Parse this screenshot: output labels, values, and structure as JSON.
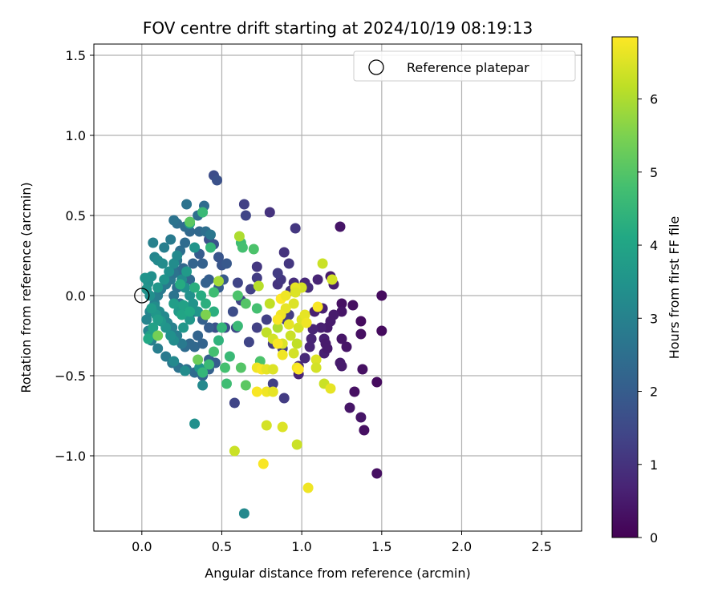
{
  "chart_data": {
    "type": "scatter",
    "title": "FOV centre drift starting at 2024/10/19 08:19:13",
    "xlabel": "Angular distance from reference (arcmin)",
    "ylabel": "Rotation from reference (arcmin)",
    "xlim": [
      -0.3,
      2.75
    ],
    "ylim": [
      -1.47,
      1.57
    ],
    "xticks": [
      0.0,
      0.5,
      1.0,
      1.5,
      2.0,
      2.5
    ],
    "xtick_labels": [
      "0.0",
      "0.5",
      "1.0",
      "1.5",
      "2.0",
      "2.5"
    ],
    "yticks": [
      -1.0,
      -0.5,
      0.0,
      0.5,
      1.0,
      1.5
    ],
    "ytick_labels": [
      "−1.0",
      "−0.5",
      "0.0",
      "0.5",
      "1.0",
      "1.5"
    ],
    "grid": true,
    "legend": {
      "placement": "top-right",
      "entries": [
        {
          "label": "Reference platepar",
          "marker": "open-circle"
        }
      ]
    },
    "reference_point": {
      "x": 0.0,
      "y": 0.0
    },
    "colorbar": {
      "label": "Hours from first FF file",
      "range": [
        0,
        6.85
      ],
      "ticks": [
        0,
        1,
        2,
        3,
        4,
        5,
        6
      ],
      "tick_labels": [
        "0",
        "1",
        "2",
        "3",
        "4",
        "5",
        "6"
      ],
      "colormap": "viridis"
    },
    "points": [
      [
        1.5,
        0.0,
        0.2
      ],
      [
        1.5,
        -0.22,
        0.2
      ],
      [
        1.47,
        -0.54,
        0.2
      ],
      [
        1.47,
        -1.11,
        0.3
      ],
      [
        1.39,
        -0.84,
        0.3
      ],
      [
        1.37,
        -0.76,
        0.4
      ],
      [
        1.33,
        -0.6,
        0.3
      ],
      [
        1.3,
        -0.7,
        0.4
      ],
      [
        1.37,
        -0.24,
        0.3
      ],
      [
        1.38,
        -0.46,
        0.3
      ],
      [
        1.37,
        -0.16,
        0.2
      ],
      [
        1.32,
        -0.06,
        0.3
      ],
      [
        1.25,
        -0.05,
        0.3
      ],
      [
        1.25,
        -0.1,
        0.4
      ],
      [
        1.24,
        0.43,
        0.4
      ],
      [
        1.18,
        0.12,
        0.5
      ],
      [
        1.2,
        0.07,
        0.6
      ],
      [
        1.25,
        -0.27,
        0.4
      ],
      [
        1.28,
        -0.32,
        0.4
      ],
      [
        1.24,
        -0.42,
        0.5
      ],
      [
        1.25,
        -0.44,
        0.5
      ],
      [
        1.16,
        -0.2,
        0.5
      ],
      [
        1.14,
        -0.27,
        0.6
      ],
      [
        1.2,
        -0.12,
        0.5
      ],
      [
        1.13,
        -0.08,
        0.6
      ],
      [
        1.1,
        0.1,
        0.7
      ],
      [
        1.08,
        -0.1,
        0.6
      ],
      [
        1.12,
        -0.2,
        0.6
      ],
      [
        1.15,
        -0.3,
        0.5
      ],
      [
        1.14,
        -0.36,
        0.6
      ],
      [
        1.16,
        -0.33,
        0.5
      ],
      [
        1.18,
        -0.16,
        0.5
      ],
      [
        1.07,
        -0.21,
        0.7
      ],
      [
        1.06,
        -0.27,
        0.7
      ],
      [
        1.05,
        -0.32,
        0.7
      ],
      [
        1.02,
        -0.39,
        0.8
      ],
      [
        0.98,
        -0.49,
        0.7
      ],
      [
        0.98,
        -0.44,
        0.8
      ],
      [
        1.02,
        0.08,
        0.8
      ],
      [
        1.04,
        0.05,
        0.9
      ],
      [
        0.95,
        0.08,
        0.9
      ],
      [
        0.93,
        0.03,
        1.0
      ],
      [
        0.92,
        0.2,
        1.1
      ],
      [
        0.89,
        0.27,
        1.0
      ],
      [
        0.85,
        0.07,
        1.0
      ],
      [
        0.87,
        0.1,
        1.1
      ],
      [
        0.85,
        0.14,
        1.2
      ],
      [
        0.96,
        0.42,
        1.1
      ],
      [
        0.8,
        0.52,
        1.0
      ],
      [
        0.72,
        0.18,
        1.1
      ],
      [
        0.72,
        0.11,
        1.2
      ],
      [
        0.68,
        0.04,
        1.3
      ],
      [
        0.64,
        0.57,
        1.3
      ],
      [
        0.65,
        0.5,
        1.4
      ],
      [
        0.6,
        0.08,
        1.4
      ],
      [
        0.58,
        -0.67,
        1.4
      ],
      [
        0.89,
        -0.64,
        1.2
      ],
      [
        0.82,
        -0.55,
        1.3
      ],
      [
        0.88,
        -0.33,
        1.2
      ],
      [
        0.82,
        -0.3,
        1.2
      ],
      [
        0.9,
        -0.15,
        1.2
      ],
      [
        0.92,
        -0.12,
        1.2
      ],
      [
        0.78,
        -0.15,
        1.3
      ],
      [
        0.72,
        -0.2,
        1.3
      ],
      [
        0.67,
        -0.29,
        1.4
      ],
      [
        0.62,
        -0.03,
        1.4
      ],
      [
        0.57,
        -0.1,
        1.6
      ],
      [
        0.59,
        -0.2,
        1.5
      ],
      [
        0.52,
        -0.2,
        1.6
      ],
      [
        0.46,
        -0.2,
        1.7
      ],
      [
        0.45,
        0.75,
        1.6
      ],
      [
        0.47,
        0.72,
        1.7
      ],
      [
        0.42,
        0.35,
        1.7
      ],
      [
        0.45,
        0.32,
        1.8
      ],
      [
        0.48,
        0.24,
        1.8
      ],
      [
        0.5,
        0.19,
        1.8
      ],
      [
        0.53,
        0.2,
        1.9
      ],
      [
        0.51,
        0.1,
        1.9
      ],
      [
        0.48,
        0.05,
        2.0
      ],
      [
        0.42,
        0.1,
        2.0
      ],
      [
        0.4,
        0.08,
        2.1
      ],
      [
        0.38,
        0.2,
        2.1
      ],
      [
        0.36,
        0.26,
        2.0
      ],
      [
        0.32,
        0.2,
        2.2
      ],
      [
        0.3,
        0.1,
        2.3
      ],
      [
        0.26,
        0.17,
        2.3
      ],
      [
        0.23,
        0.15,
        2.4
      ],
      [
        0.22,
        0.05,
        2.5
      ],
      [
        0.2,
        0.0,
        2.6
      ],
      [
        0.24,
        -0.05,
        2.5
      ],
      [
        0.28,
        -0.08,
        2.4
      ],
      [
        0.33,
        -0.1,
        2.2
      ],
      [
        0.38,
        -0.15,
        2.1
      ],
      [
        0.42,
        -0.2,
        2.0
      ],
      [
        0.35,
        -0.25,
        2.2
      ],
      [
        0.3,
        -0.3,
        2.3
      ],
      [
        0.27,
        -0.32,
        2.4
      ],
      [
        0.33,
        -0.32,
        2.3
      ],
      [
        0.38,
        -0.3,
        2.2
      ],
      [
        0.42,
        -0.4,
        2.1
      ],
      [
        0.46,
        -0.42,
        2.0
      ],
      [
        0.42,
        -0.46,
        2.1
      ],
      [
        0.38,
        -0.5,
        2.2
      ],
      [
        0.33,
        -0.48,
        2.4
      ],
      [
        0.28,
        -0.46,
        2.5
      ],
      [
        0.23,
        -0.45,
        2.6
      ],
      [
        0.19,
        -0.42,
        2.7
      ],
      [
        0.15,
        -0.38,
        2.8
      ],
      [
        0.1,
        -0.33,
        2.9
      ],
      [
        0.06,
        -0.28,
        3.0
      ],
      [
        0.04,
        -0.22,
        3.1
      ],
      [
        0.03,
        -0.15,
        3.1
      ],
      [
        0.05,
        -0.1,
        3.1
      ],
      [
        0.08,
        -0.05,
        3.0
      ],
      [
        0.1,
        0.0,
        2.9
      ],
      [
        0.12,
        0.04,
        2.8
      ],
      [
        0.15,
        0.07,
        2.8
      ],
      [
        0.18,
        0.1,
        2.7
      ],
      [
        0.2,
        0.14,
        2.6
      ],
      [
        0.22,
        0.22,
        2.6
      ],
      [
        0.24,
        0.28,
        2.5
      ],
      [
        0.27,
        0.33,
        2.4
      ],
      [
        0.3,
        0.4,
        2.3
      ],
      [
        0.27,
        0.43,
        2.4
      ],
      [
        0.22,
        0.45,
        2.5
      ],
      [
        0.2,
        0.47,
        2.6
      ],
      [
        0.28,
        0.57,
        2.6
      ],
      [
        0.35,
        0.5,
        2.5
      ],
      [
        0.39,
        0.56,
        2.4
      ],
      [
        0.36,
        0.4,
        2.3
      ],
      [
        0.4,
        0.4,
        2.5
      ],
      [
        0.43,
        0.38,
        2.7
      ],
      [
        0.18,
        0.35,
        2.8
      ],
      [
        0.14,
        0.3,
        2.9
      ],
      [
        0.07,
        0.33,
        3.0
      ],
      [
        0.08,
        0.24,
        3.1
      ],
      [
        0.1,
        0.22,
        3.2
      ],
      [
        0.13,
        0.2,
        3.3
      ],
      [
        0.06,
        0.12,
        3.4
      ],
      [
        0.04,
        0.08,
        3.4
      ],
      [
        0.02,
        0.11,
        3.5
      ],
      [
        0.03,
        0.04,
        3.5
      ],
      [
        0.05,
        0.0,
        3.4
      ],
      [
        0.08,
        -0.07,
        3.3
      ],
      [
        0.11,
        -0.1,
        3.3
      ],
      [
        0.14,
        -0.13,
        3.2
      ],
      [
        0.16,
        -0.17,
        3.1
      ],
      [
        0.19,
        -0.2,
        3.0
      ],
      [
        0.22,
        -0.25,
        2.9
      ],
      [
        0.25,
        -0.3,
        2.8
      ],
      [
        0.2,
        -0.28,
        3.3
      ],
      [
        0.18,
        -0.25,
        3.4
      ],
      [
        0.15,
        -0.2,
        3.5
      ],
      [
        0.12,
        -0.16,
        3.6
      ],
      [
        0.09,
        -0.12,
        3.6
      ],
      [
        0.06,
        -0.08,
        3.7
      ],
      [
        0.1,
        0.05,
        3.6
      ],
      [
        0.14,
        0.1,
        3.5
      ],
      [
        0.17,
        0.15,
        3.4
      ],
      [
        0.2,
        0.2,
        3.3
      ],
      [
        0.22,
        0.25,
        3.2
      ],
      [
        0.25,
        0.1,
        3.3
      ],
      [
        0.27,
        0.05,
        3.4
      ],
      [
        0.3,
        0.0,
        3.4
      ],
      [
        0.32,
        -0.05,
        3.5
      ],
      [
        0.35,
        -0.1,
        3.5
      ],
      [
        0.3,
        -0.15,
        3.6
      ],
      [
        0.26,
        -0.2,
        3.6
      ],
      [
        0.23,
        -0.1,
        3.7
      ],
      [
        0.28,
        0.15,
        3.7
      ],
      [
        0.33,
        0.3,
        3.5
      ],
      [
        0.3,
        0.45,
        3.9
      ],
      [
        0.33,
        -0.8,
        3.4
      ],
      [
        0.38,
        -0.56,
        3.2
      ],
      [
        0.64,
        -1.36,
        3.2
      ],
      [
        0.27,
        -0.47,
        3.3
      ],
      [
        0.36,
        -0.45,
        3.5
      ],
      [
        0.2,
        -0.41,
        3.2
      ],
      [
        0.05,
        -0.25,
        3.8
      ],
      [
        0.04,
        -0.27,
        4.1
      ],
      [
        0.07,
        -0.2,
        3.9
      ],
      [
        0.1,
        -0.15,
        3.8
      ],
      [
        0.2,
        -0.05,
        3.8
      ],
      [
        0.26,
        -0.06,
        3.9
      ],
      [
        0.25,
        -0.12,
        4.0
      ],
      [
        0.3,
        -0.1,
        4.1
      ],
      [
        0.24,
        0.07,
        4.2
      ],
      [
        0.33,
        0.05,
        4.3
      ],
      [
        0.37,
        0.0,
        4.2
      ],
      [
        0.4,
        -0.05,
        4.3
      ],
      [
        0.45,
        -0.1,
        4.3
      ],
      [
        0.48,
        -0.28,
        4.4
      ],
      [
        0.5,
        -0.2,
        4.5
      ],
      [
        0.42,
        -0.43,
        4.6
      ],
      [
        0.45,
        -0.35,
        4.8
      ],
      [
        0.38,
        -0.48,
        4.5
      ],
      [
        0.38,
        0.52,
        4.6
      ],
      [
        0.43,
        0.3,
        4.5
      ],
      [
        0.45,
        0.02,
        4.7
      ],
      [
        0.55,
        -0.38,
        4.6
      ],
      [
        0.52,
        -0.45,
        4.8
      ],
      [
        0.53,
        -0.55,
        4.7
      ],
      [
        0.6,
        -0.19,
        4.6
      ],
      [
        0.62,
        0.33,
        4.7
      ],
      [
        0.63,
        0.3,
        4.8
      ],
      [
        0.7,
        0.29,
        4.9
      ],
      [
        0.6,
        0.0,
        4.9
      ],
      [
        0.65,
        -0.05,
        5.0
      ],
      [
        0.72,
        -0.08,
        4.8
      ],
      [
        0.74,
        -0.41,
        4.9
      ],
      [
        0.62,
        -0.45,
        5.0
      ],
      [
        0.65,
        -0.56,
        5.1
      ],
      [
        0.3,
        0.46,
        5.1
      ],
      [
        0.35,
        -0.4,
        5.3
      ],
      [
        0.1,
        -0.25,
        5.4
      ],
      [
        0.4,
        -0.12,
        5.5
      ],
      [
        0.48,
        0.09,
        5.9
      ],
      [
        0.61,
        0.37,
        6.0
      ],
      [
        0.73,
        0.06,
        6.1
      ],
      [
        0.8,
        -0.05,
        6.2
      ],
      [
        0.85,
        -0.2,
        6.0
      ],
      [
        0.78,
        -0.23,
        6.2
      ],
      [
        0.82,
        -0.27,
        6.4
      ],
      [
        0.88,
        -0.3,
        6.5
      ],
      [
        0.93,
        -0.25,
        6.3
      ],
      [
        0.97,
        -0.3,
        6.2
      ],
      [
        0.98,
        -0.2,
        6.4
      ],
      [
        1.0,
        -0.15,
        6.5
      ],
      [
        1.02,
        -0.12,
        6.6
      ],
      [
        1.03,
        -0.17,
        6.7
      ],
      [
        0.95,
        -0.05,
        6.5
      ],
      [
        0.9,
        -0.08,
        6.6
      ],
      [
        0.87,
        -0.12,
        6.7
      ],
      [
        0.85,
        -0.15,
        6.8
      ],
      [
        0.92,
        -0.18,
        6.6
      ],
      [
        0.95,
        -0.36,
        6.4
      ],
      [
        0.97,
        -0.45,
        6.7
      ],
      [
        1.09,
        -0.4,
        6.5
      ],
      [
        1.09,
        -0.45,
        6.4
      ],
      [
        1.14,
        -0.55,
        6.3
      ],
      [
        1.18,
        -0.58,
        6.6
      ],
      [
        0.72,
        -0.45,
        6.7
      ],
      [
        0.75,
        -0.46,
        6.8
      ],
      [
        0.78,
        -0.46,
        6.6
      ],
      [
        0.82,
        -0.46,
        6.5
      ],
      [
        0.78,
        -0.6,
        6.7
      ],
      [
        0.82,
        -0.6,
        6.6
      ],
      [
        0.72,
        -0.6,
        6.8
      ],
      [
        0.78,
        -0.81,
        6.4
      ],
      [
        0.88,
        -0.82,
        6.5
      ],
      [
        0.58,
        -0.97,
        6.3
      ],
      [
        0.97,
        -0.93,
        6.3
      ],
      [
        0.76,
        -1.05,
        6.8
      ],
      [
        1.04,
        -1.2,
        6.7
      ],
      [
        1.0,
        0.05,
        6.4
      ],
      [
        1.13,
        0.2,
        6.3
      ],
      [
        1.19,
        0.1,
        6.4
      ],
      [
        0.96,
        0.05,
        6.6
      ],
      [
        1.1,
        -0.07,
        6.8
      ],
      [
        0.87,
        -0.02,
        6.9
      ],
      [
        0.9,
        0.0,
        6.7
      ],
      [
        0.96,
        0.02,
        6.5
      ],
      [
        0.85,
        -0.3,
        6.8
      ],
      [
        0.88,
        -0.37,
        6.7
      ],
      [
        0.98,
        -0.46,
        6.9
      ]
    ]
  }
}
